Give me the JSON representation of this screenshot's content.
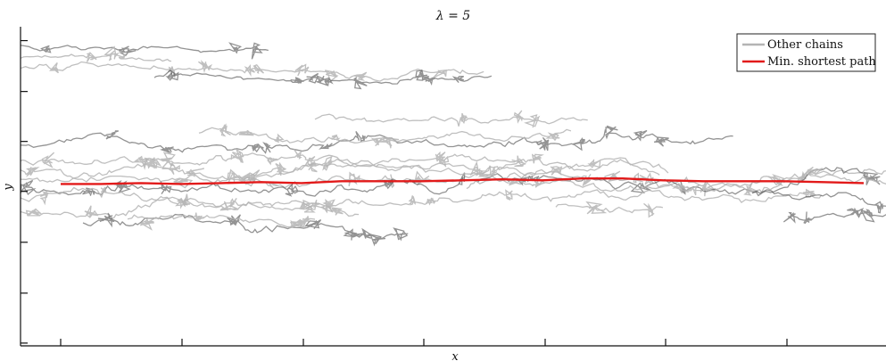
{
  "chart_data": {
    "type": "line",
    "title": "λ = 5",
    "xlabel": "x",
    "ylabel": "y",
    "xlim": [
      0,
      970
    ],
    "ylim": [
      0,
      345
    ],
    "x_ticks": [
      45,
      181,
      317,
      452,
      588,
      723,
      859
    ],
    "y_ticks": [
      15,
      70,
      124,
      178,
      233,
      288,
      342
    ],
    "tick_labels_shown": false,
    "grid": false,
    "legend": {
      "position": "top-right",
      "entries": [
        {
          "name": "Other chains",
          "color": "#b4b4b4"
        },
        {
          "name": "Min. shortest path",
          "color": "#e21a1a"
        }
      ]
    },
    "series": [
      {
        "name": "Min. shortest path",
        "color": "#e21a1a",
        "x": [
          45,
          90,
          135,
          180,
          225,
          270,
          315,
          360,
          405,
          450,
          495,
          540,
          585,
          630,
          675,
          720,
          765,
          810,
          855,
          900,
          945
        ],
        "y": [
          170,
          170,
          169,
          170,
          169,
          168,
          169,
          167,
          167,
          167,
          166,
          165,
          166,
          164,
          164,
          166,
          167,
          167,
          167,
          168,
          169
        ]
      }
    ],
    "other_chains_color": "#b4b4b4",
    "other_chains_dark_color": "#3a3a3a"
  }
}
